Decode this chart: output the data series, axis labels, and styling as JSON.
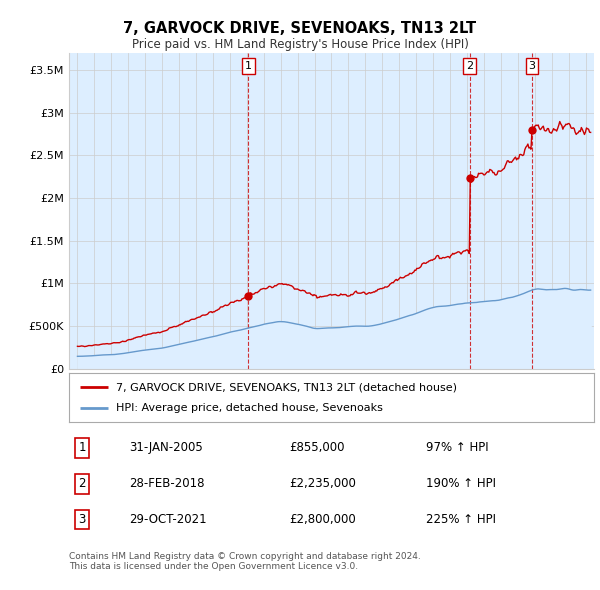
{
  "title": "7, GARVOCK DRIVE, SEVENOAKS, TN13 2LT",
  "subtitle": "Price paid vs. HM Land Registry's House Price Index (HPI)",
  "property_label": "7, GARVOCK DRIVE, SEVENOAKS, TN13 2LT (detached house)",
  "hpi_label": "HPI: Average price, detached house, Sevenoaks",
  "property_color": "#cc0000",
  "hpi_color": "#6699cc",
  "hpi_fill_color": "#ddeeff",
  "sale_prices": [
    855000,
    2235000,
    2800000
  ],
  "sale_year_nums": [
    2005.083,
    2018.167,
    2021.833
  ],
  "sale_labels": [
    "1",
    "2",
    "3"
  ],
  "sale_table": [
    [
      "1",
      "31-JAN-2005",
      "£855,000",
      "97% ↑ HPI"
    ],
    [
      "2",
      "28-FEB-2018",
      "£2,235,000",
      "190% ↑ HPI"
    ],
    [
      "3",
      "29-OCT-2021",
      "£2,800,000",
      "225% ↑ HPI"
    ]
  ],
  "footer": "Contains HM Land Registry data © Crown copyright and database right 2024.\nThis data is licensed under the Open Government Licence v3.0.",
  "ylim": [
    0,
    3700000
  ],
  "yticks": [
    0,
    500000,
    1000000,
    1500000,
    2000000,
    2500000,
    3000000,
    3500000
  ],
  "ytick_labels": [
    "£0",
    "£500K",
    "£1M",
    "£1.5M",
    "£2M",
    "£2.5M",
    "£3M",
    "£3.5M"
  ],
  "xlim_start": 1994.5,
  "xlim_end": 2025.5,
  "background_color": "#ffffff",
  "grid_color": "#cccccc",
  "hpi_keypoints_x": [
    1995,
    1997,
    2000,
    2004,
    2007,
    2009,
    2012,
    2014,
    2016,
    2018,
    2020,
    2022,
    2025
  ],
  "hpi_keypoints_y": [
    145000,
    165000,
    240000,
    420000,
    560000,
    480000,
    510000,
    600000,
    750000,
    820000,
    870000,
    1000000,
    970000
  ]
}
